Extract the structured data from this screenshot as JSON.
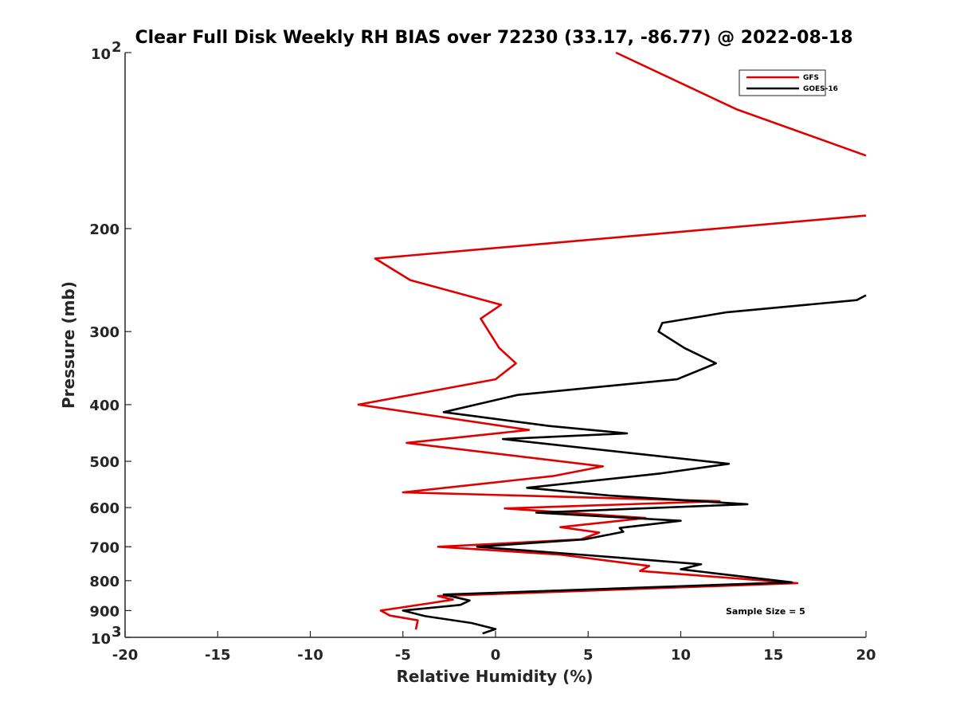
{
  "chart_data": {
    "type": "line",
    "title": "Clear Full Disk Weekly RH BIAS over 72230 (33.17, -86.77) @ 2022-08-18",
    "xlabel": "Relative Humidity (%)",
    "ylabel": "Pressure (mb)",
    "xlim": [
      -20,
      20
    ],
    "ylim": [
      100,
      1000
    ],
    "y_scale": "log",
    "y_reversed": true,
    "grid": false,
    "legend_position": "top-right",
    "annotation": "Sample Size = 5",
    "x_ticks": [
      {
        "value": -20,
        "label": "-20"
      },
      {
        "value": -15,
        "label": "-15"
      },
      {
        "value": -10,
        "label": "-10"
      },
      {
        "value": -5,
        "label": "-5"
      },
      {
        "value": 0,
        "label": "0"
      },
      {
        "value": 5,
        "label": "5"
      },
      {
        "value": 10,
        "label": "10"
      },
      {
        "value": 15,
        "label": "15"
      },
      {
        "value": 20,
        "label": "20"
      }
    ],
    "y_ticks": [
      {
        "value": 100,
        "base": "10",
        "exp": "2"
      },
      {
        "value": 200,
        "label": "200"
      },
      {
        "value": 300,
        "label": "300"
      },
      {
        "value": 400,
        "label": "400"
      },
      {
        "value": 500,
        "label": "500"
      },
      {
        "value": 600,
        "label": "600"
      },
      {
        "value": 700,
        "label": "700"
      },
      {
        "value": 800,
        "label": "800"
      },
      {
        "value": 900,
        "label": "900"
      },
      {
        "value": 1000,
        "base": "10",
        "exp": "3"
      }
    ],
    "series": [
      {
        "name": "GFS",
        "color": "#e00000",
        "points": [
          [
            6.5,
            100
          ],
          [
            13,
            125
          ],
          [
            20,
            150
          ],
          null,
          [
            20,
            190
          ],
          [
            -6.5,
            225
          ],
          [
            -4.6,
            245
          ],
          [
            0.3,
            270
          ],
          [
            -0.8,
            285
          ],
          [
            0.2,
            320
          ],
          [
            1.1,
            340
          ],
          [
            0,
            362
          ],
          [
            -7.4,
            400
          ],
          [
            1.8,
            442
          ],
          [
            -4.8,
            465
          ],
          [
            5.8,
            510
          ],
          [
            3.1,
            530
          ],
          [
            -5,
            565
          ],
          [
            12.1,
            585
          ],
          [
            0.5,
            602
          ],
          [
            8.1,
            625
          ],
          [
            3.5,
            648
          ],
          [
            5.6,
            662
          ],
          [
            4.6,
            680
          ],
          [
            -3.1,
            700
          ],
          [
            3.5,
            722
          ],
          [
            8.3,
            755
          ],
          [
            7.8,
            770
          ],
          [
            16.3,
            808
          ],
          [
            -3.1,
            850
          ],
          [
            -2.3,
            862
          ],
          [
            -3.6,
            875
          ],
          [
            -6.2,
            900
          ],
          [
            -5.7,
            918
          ],
          [
            -4.2,
            935
          ],
          [
            -4.3,
            970
          ]
        ]
      },
      {
        "name": "GOES-16",
        "color": "#000000",
        "points": [
          [
            20,
            260
          ],
          [
            19.5,
            265
          ],
          [
            12.5,
            278
          ],
          [
            9,
            290
          ],
          [
            8.8,
            300
          ],
          [
            10.2,
            320
          ],
          [
            11.9,
            340
          ],
          [
            9.8,
            362
          ],
          [
            1.2,
            385
          ],
          [
            -2.8,
            412
          ],
          [
            2.9,
            435
          ],
          [
            7.1,
            448
          ],
          [
            0.4,
            458
          ],
          [
            12.6,
            505
          ],
          [
            8.8,
            525
          ],
          [
            1.7,
            555
          ],
          [
            6.1,
            572
          ],
          [
            13.6,
            592
          ],
          [
            2.2,
            612
          ],
          [
            10,
            632
          ],
          [
            6.7,
            650
          ],
          [
            6.9,
            660
          ],
          [
            4.8,
            680
          ],
          [
            -1,
            700
          ],
          [
            5.3,
            725
          ],
          [
            11.1,
            750
          ],
          [
            10,
            765
          ],
          [
            16,
            805
          ],
          [
            -2.8,
            845
          ],
          [
            -1.4,
            865
          ],
          [
            -1.9,
            880
          ],
          [
            -5,
            900
          ],
          [
            -3.8,
            920
          ],
          [
            -1.3,
            945
          ],
          [
            0,
            968
          ],
          [
            -0.7,
            985
          ]
        ]
      }
    ]
  }
}
